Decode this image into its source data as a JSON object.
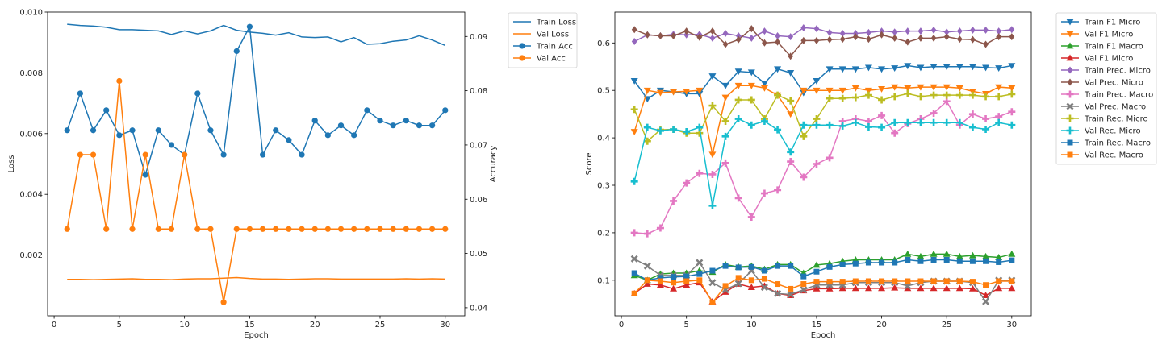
{
  "chart_data": [
    {
      "type": "line",
      "xlabel": "Epoch",
      "ylabel": "Loss",
      "ylabel_right": "Accuracy",
      "xlim": [
        -0.5,
        31.5
      ],
      "ylim": [
        0.0,
        0.01
      ],
      "ylim_right": [
        0.0385,
        0.0945
      ],
      "x_ticks": [
        "0",
        "5",
        "10",
        "15",
        "20",
        "25",
        "30"
      ],
      "y_ticks": [
        "0.002",
        "0.004",
        "0.006",
        "0.008",
        "0.010"
      ],
      "y_ticks_right": [
        "0.04",
        "0.05",
        "0.06",
        "0.07",
        "0.08",
        "0.09"
      ],
      "legend_position": "outside right, top",
      "x": [
        1,
        2,
        3,
        4,
        5,
        6,
        7,
        8,
        9,
        10,
        11,
        12,
        13,
        14,
        15,
        16,
        17,
        18,
        19,
        20,
        21,
        22,
        23,
        24,
        25,
        26,
        27,
        28,
        29,
        30
      ],
      "series": [
        {
          "name": "Train Loss",
          "axis": "left",
          "color": "#1f77b4",
          "marker": "none",
          "values": [
            0.0096,
            0.00956,
            0.00954,
            0.0095,
            0.00942,
            0.00942,
            0.0094,
            0.00938,
            0.00926,
            0.00938,
            0.00928,
            0.00938,
            0.00956,
            0.0094,
            0.00934,
            0.0093,
            0.00924,
            0.00932,
            0.00918,
            0.00916,
            0.00918,
            0.00902,
            0.00916,
            0.00894,
            0.00896,
            0.00904,
            0.00908,
            0.00922,
            0.00908,
            0.0089
          ]
        },
        {
          "name": "Val Loss",
          "axis": "left",
          "color": "#ff7f0e",
          "marker": "none",
          "values": [
            0.0012,
            0.0012,
            0.00119,
            0.0012,
            0.00121,
            0.00122,
            0.0012,
            0.0012,
            0.00119,
            0.00121,
            0.00122,
            0.00122,
            0.00124,
            0.00126,
            0.00123,
            0.00121,
            0.00121,
            0.0012,
            0.00121,
            0.00122,
            0.00122,
            0.00121,
            0.00121,
            0.00121,
            0.00121,
            0.00121,
            0.00122,
            0.00121,
            0.00122,
            0.00121
          ]
        },
        {
          "name": "Train Acc",
          "axis": "right",
          "color": "#1f77b4",
          "marker": "circle",
          "values": [
            0.0727,
            0.0795,
            0.0727,
            0.0764,
            0.0718,
            0.0727,
            0.0645,
            0.0727,
            0.07,
            0.0682,
            0.0795,
            0.0727,
            0.0682,
            0.0873,
            0.0918,
            0.0682,
            0.0727,
            0.0709,
            0.0682,
            0.0745,
            0.0718,
            0.0736,
            0.0718,
            0.0764,
            0.0745,
            0.0736,
            0.0745,
            0.0736,
            0.0736,
            0.0764
          ]
        },
        {
          "name": "Val Acc",
          "axis": "right",
          "color": "#ff7f0e",
          "marker": "circle",
          "values": [
            0.0545,
            0.0682,
            0.0682,
            0.0545,
            0.0818,
            0.0545,
            0.0682,
            0.0545,
            0.0545,
            0.0682,
            0.0545,
            0.0545,
            0.041,
            0.0545,
            0.0545,
            0.0545,
            0.0545,
            0.0545,
            0.0545,
            0.0545,
            0.0545,
            0.0545,
            0.0545,
            0.0545,
            0.0545,
            0.0545,
            0.0545,
            0.0545,
            0.0545,
            0.0545
          ]
        }
      ]
    },
    {
      "type": "line",
      "xlabel": "Epoch",
      "ylabel": "Score",
      "xlim": [
        -0.5,
        31.5
      ],
      "ylim": [
        0.025,
        0.665
      ],
      "x_ticks": [
        "0",
        "5",
        "10",
        "15",
        "20",
        "25",
        "30"
      ],
      "y_ticks": [
        "0.1",
        "0.2",
        "0.3",
        "0.4",
        "0.5",
        "0.6"
      ],
      "legend_position": "outside right, top",
      "x": [
        1,
        2,
        3,
        4,
        5,
        6,
        7,
        8,
        9,
        10,
        11,
        12,
        13,
        14,
        15,
        16,
        17,
        18,
        19,
        20,
        21,
        22,
        23,
        24,
        25,
        26,
        27,
        28,
        29,
        30
      ],
      "series": [
        {
          "name": "Train F1 Micro",
          "color": "#1f77b4",
          "marker": "triangle-down",
          "values": [
            0.52,
            0.482,
            0.5,
            0.497,
            0.493,
            0.493,
            0.53,
            0.51,
            0.54,
            0.538,
            0.515,
            0.545,
            0.537,
            0.495,
            0.52,
            0.545,
            0.545,
            0.545,
            0.548,
            0.545,
            0.547,
            0.552,
            0.548,
            0.55,
            0.55,
            0.55,
            0.55,
            0.548,
            0.547,
            0.552
          ]
        },
        {
          "name": "Val F1 Micro",
          "color": "#ff7f0e",
          "marker": "triangle-down",
          "values": [
            0.413,
            0.5,
            0.495,
            0.497,
            0.498,
            0.5,
            0.365,
            0.485,
            0.51,
            0.51,
            0.505,
            0.49,
            0.45,
            0.5,
            0.5,
            0.5,
            0.5,
            0.505,
            0.5,
            0.503,
            0.507,
            0.505,
            0.507,
            0.507,
            0.507,
            0.505,
            0.498,
            0.493,
            0.507,
            0.505
          ]
        },
        {
          "name": "Train F1 Macro",
          "color": "#2ca02c",
          "marker": "triangle-up",
          "values": [
            0.11,
            0.1,
            0.113,
            0.115,
            0.115,
            0.12,
            0.117,
            0.133,
            0.128,
            0.13,
            0.123,
            0.133,
            0.133,
            0.115,
            0.132,
            0.135,
            0.14,
            0.143,
            0.143,
            0.143,
            0.143,
            0.155,
            0.15,
            0.155,
            0.155,
            0.15,
            0.152,
            0.15,
            0.148,
            0.155
          ]
        },
        {
          "name": "Val F1 Micro",
          "color": "#d62728",
          "marker": "triangle-up",
          "values": [
            0.072,
            0.092,
            0.09,
            0.082,
            0.09,
            0.095,
            0.055,
            0.075,
            0.092,
            0.085,
            0.088,
            0.072,
            0.068,
            0.078,
            0.082,
            0.082,
            0.083,
            0.083,
            0.083,
            0.083,
            0.084,
            0.083,
            0.083,
            0.083,
            0.083,
            0.083,
            0.082,
            0.068,
            0.083,
            0.083
          ]
        },
        {
          "name": "Train Prec. Micro",
          "color": "#9467bd",
          "marker": "diamond",
          "values": [
            0.603,
            0.617,
            0.615,
            0.618,
            0.617,
            0.618,
            0.61,
            0.62,
            0.615,
            0.61,
            0.625,
            0.615,
            0.613,
            0.632,
            0.63,
            0.622,
            0.62,
            0.62,
            0.622,
            0.625,
            0.623,
            0.625,
            0.625,
            0.627,
            0.623,
            0.625,
            0.627,
            0.627,
            0.625,
            0.628
          ]
        },
        {
          "name": "Val Prec. Micro",
          "color": "#8c564b",
          "marker": "diamond",
          "values": [
            0.628,
            0.617,
            0.615,
            0.615,
            0.625,
            0.612,
            0.625,
            0.597,
            0.607,
            0.63,
            0.6,
            0.602,
            0.572,
            0.605,
            0.605,
            0.607,
            0.608,
            0.613,
            0.608,
            0.617,
            0.61,
            0.602,
            0.61,
            0.61,
            0.613,
            0.608,
            0.607,
            0.597,
            0.613,
            0.613
          ]
        },
        {
          "name": "Train Prec. Macro",
          "color": "#e377c2",
          "marker": "plus",
          "values": [
            0.2,
            0.198,
            0.21,
            0.267,
            0.305,
            0.325,
            0.323,
            0.347,
            0.273,
            0.233,
            0.283,
            0.29,
            0.35,
            0.317,
            0.345,
            0.358,
            0.435,
            0.44,
            0.435,
            0.447,
            0.41,
            0.43,
            0.44,
            0.452,
            0.477,
            0.427,
            0.45,
            0.44,
            0.445,
            0.455
          ]
        },
        {
          "name": "Val Prec. Macro",
          "color": "#7f7f7f",
          "marker": "x",
          "values": [
            0.145,
            0.13,
            0.11,
            0.11,
            0.11,
            0.137,
            0.095,
            0.08,
            0.093,
            0.12,
            0.085,
            0.072,
            0.07,
            0.08,
            0.09,
            0.09,
            0.09,
            0.095,
            0.095,
            0.095,
            0.095,
            0.088,
            0.095,
            0.098,
            0.098,
            0.098,
            0.095,
            0.055,
            0.1,
            0.1
          ]
        },
        {
          "name": "Train Rec. Micro",
          "color": "#bcbd22",
          "marker": "plus",
          "values": [
            0.46,
            0.393,
            0.417,
            0.418,
            0.41,
            0.41,
            0.468,
            0.435,
            0.48,
            0.48,
            0.44,
            0.49,
            0.478,
            0.403,
            0.44,
            0.483,
            0.483,
            0.485,
            0.49,
            0.48,
            0.487,
            0.493,
            0.487,
            0.49,
            0.49,
            0.49,
            0.49,
            0.487,
            0.487,
            0.492
          ]
        },
        {
          "name": "Val Rec. Micro",
          "color": "#17becf",
          "marker": "plus",
          "values": [
            0.308,
            0.422,
            0.415,
            0.418,
            0.413,
            0.422,
            0.257,
            0.403,
            0.44,
            0.427,
            0.435,
            0.417,
            0.37,
            0.427,
            0.427,
            0.427,
            0.425,
            0.432,
            0.423,
            0.422,
            0.432,
            0.432,
            0.432,
            0.432,
            0.432,
            0.432,
            0.422,
            0.418,
            0.432,
            0.427
          ]
        },
        {
          "name": "Train Rec. Macro",
          "color": "#1f77b4",
          "marker": "square",
          "values": [
            0.115,
            0.1,
            0.105,
            0.107,
            0.108,
            0.113,
            0.12,
            0.13,
            0.127,
            0.128,
            0.12,
            0.13,
            0.13,
            0.108,
            0.118,
            0.128,
            0.133,
            0.135,
            0.137,
            0.137,
            0.137,
            0.143,
            0.14,
            0.143,
            0.143,
            0.14,
            0.14,
            0.14,
            0.138,
            0.142
          ]
        },
        {
          "name": "Val Rec. Macro",
          "color": "#ff7f0e",
          "marker": "square",
          "values": [
            0.072,
            0.1,
            0.098,
            0.095,
            0.098,
            0.1,
            0.053,
            0.088,
            0.105,
            0.1,
            0.103,
            0.092,
            0.082,
            0.092,
            0.097,
            0.097,
            0.097,
            0.098,
            0.098,
            0.098,
            0.098,
            0.098,
            0.098,
            0.098,
            0.098,
            0.098,
            0.097,
            0.09,
            0.098,
            0.098
          ]
        }
      ]
    }
  ]
}
